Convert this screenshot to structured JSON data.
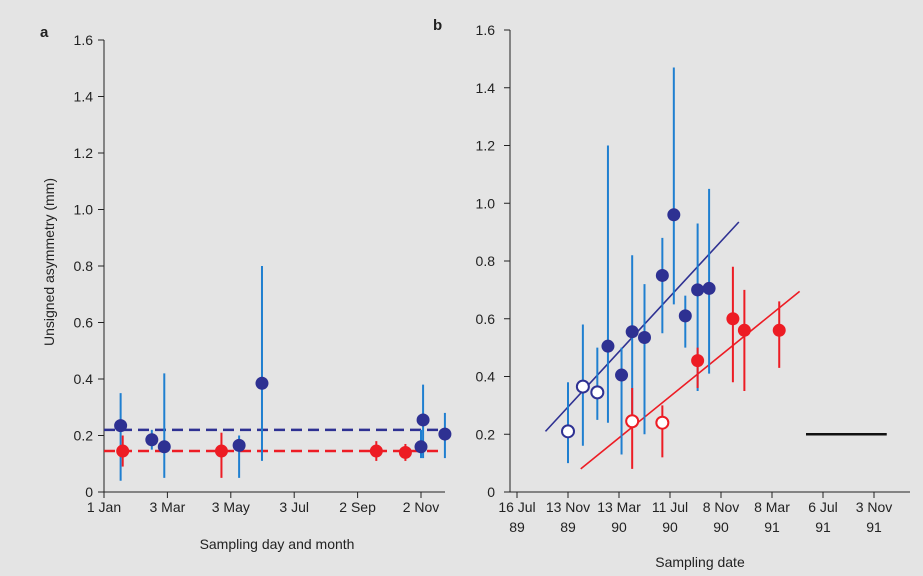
{
  "chart_data": [
    {
      "panel": "a",
      "type": "scatter",
      "xlabel": "Sampling day and month",
      "ylabel": "Unsigned asymmetry (mm)",
      "ylim": [
        0,
        1.6
      ],
      "yticks": [
        "0",
        "0.2",
        "0.4",
        "0.6",
        "0.8",
        "1.0",
        "1.2",
        "1.4",
        "1.6"
      ],
      "xlim": [
        -15,
        365
      ],
      "xticks": [
        {
          "day": 0,
          "label": "1 Jan"
        },
        {
          "day": 61,
          "label": "3 Mar"
        },
        {
          "day": 122,
          "label": "3 May"
        },
        {
          "day": 183,
          "label": "3 Jul"
        },
        {
          "day": 244,
          "label": "2 Sep"
        },
        {
          "day": 305,
          "label": "2 Nov"
        }
      ],
      "colors": {
        "blue": "#2e3192",
        "red": "#ed1c24",
        "errorbar": "#1f7fd0"
      },
      "series": [
        {
          "color": "blue",
          "points": [
            {
              "x": 16,
              "y": 0.235,
              "lo": 0.04,
              "hi": 0.35
            },
            {
              "x": 46,
              "y": 0.185,
              "lo": 0.15,
              "hi": 0.22
            },
            {
              "x": 58,
              "y": 0.16,
              "lo": 0.05,
              "hi": 0.42
            },
            {
              "x": 130,
              "y": 0.165,
              "lo": 0.05,
              "hi": 0.2
            },
            {
              "x": 152,
              "y": 0.385,
              "lo": 0.11,
              "hi": 0.8
            },
            {
              "x": 305,
              "y": 0.16,
              "lo": 0.12,
              "hi": 0.22
            },
            {
              "x": 307,
              "y": 0.255,
              "lo": 0.12,
              "hi": 0.38
            },
            {
              "x": 328,
              "y": 0.205,
              "lo": 0.12,
              "hi": 0.28
            }
          ],
          "reference_line": 0.22
        },
        {
          "color": "red",
          "points": [
            {
              "x": 18,
              "y": 0.145,
              "lo": 0.09,
              "hi": 0.2
            },
            {
              "x": 113,
              "y": 0.145,
              "lo": 0.05,
              "hi": 0.21
            },
            {
              "x": 262,
              "y": 0.145,
              "lo": 0.11,
              "hi": 0.18
            },
            {
              "x": 290,
              "y": 0.14,
              "lo": 0.11,
              "hi": 0.17
            }
          ],
          "reference_line": 0.145
        }
      ]
    },
    {
      "panel": "b",
      "type": "scatter",
      "xlabel": "Sampling date",
      "ylim": [
        0,
        1.6
      ],
      "yticks": [
        "0",
        "0.2",
        "0.4",
        "0.6",
        "0.8",
        "1.0",
        "1.2",
        "1.4",
        "1.6"
      ],
      "xlim": [
        0,
        840
      ],
      "xticks": [
        {
          "day": 0,
          "label": [
            "16 Jul",
            "89"
          ]
        },
        {
          "day": 120,
          "label": [
            "13 Nov",
            "89"
          ]
        },
        {
          "day": 240,
          "label": [
            "13 Mar",
            "90"
          ]
        },
        {
          "day": 360,
          "label": [
            "11 Jul",
            "90"
          ]
        },
        {
          "day": 480,
          "label": [
            "8 Nov",
            "90"
          ]
        },
        {
          "day": 600,
          "label": [
            "8 Mar",
            "91"
          ]
        },
        {
          "day": 720,
          "label": [
            "6 Jul",
            "91"
          ]
        },
        {
          "day": 840,
          "label": [
            "3 Nov",
            "91"
          ]
        }
      ],
      "colors": {
        "blue": "#2e3192",
        "red": "#ed1c24",
        "errorbar": "#1f7fd0",
        "scalebar": "#111111"
      },
      "series": [
        {
          "color": "blue",
          "trend": [
            [
              67,
              0.21
            ],
            [
              522,
              0.935
            ]
          ],
          "points": [
            {
              "x": 120,
              "y": 0.21,
              "lo": 0.1,
              "hi": 0.38,
              "open": true
            },
            {
              "x": 155,
              "y": 0.365,
              "lo": 0.16,
              "hi": 0.58,
              "open": true
            },
            {
              "x": 189,
              "y": 0.345,
              "lo": 0.25,
              "hi": 0.5,
              "open": true
            },
            {
              "x": 214,
              "y": 0.505,
              "lo": 0.24,
              "hi": 1.2
            },
            {
              "x": 246,
              "y": 0.405,
              "lo": 0.13,
              "hi": 0.5
            },
            {
              "x": 271,
              "y": 0.555,
              "lo": 0.23,
              "hi": 0.82
            },
            {
              "x": 300,
              "y": 0.535,
              "lo": 0.2,
              "hi": 0.72
            },
            {
              "x": 342,
              "y": 0.75,
              "lo": 0.55,
              "hi": 0.88
            },
            {
              "x": 369,
              "y": 0.96,
              "lo": 0.65,
              "hi": 1.47
            },
            {
              "x": 396,
              "y": 0.61,
              "lo": 0.5,
              "hi": 0.68
            },
            {
              "x": 425,
              "y": 0.7,
              "lo": 0.35,
              "hi": 0.93
            },
            {
              "x": 452,
              "y": 0.705,
              "lo": 0.41,
              "hi": 1.05
            }
          ]
        },
        {
          "color": "red",
          "trend": [
            [
              150,
              0.08
            ],
            [
              665,
              0.695
            ]
          ],
          "points": [
            {
              "x": 271,
              "y": 0.245,
              "lo": 0.08,
              "hi": 0.36,
              "open": true
            },
            {
              "x": 342,
              "y": 0.24,
              "lo": 0.12,
              "hi": 0.3,
              "open": true
            },
            {
              "x": 425,
              "y": 0.455,
              "lo": 0.36,
              "hi": 0.5
            },
            {
              "x": 508,
              "y": 0.6,
              "lo": 0.38,
              "hi": 0.78
            },
            {
              "x": 535,
              "y": 0.56,
              "lo": 0.35,
              "hi": 0.7
            },
            {
              "x": 617,
              "y": 0.56,
              "lo": 0.43,
              "hi": 0.66
            }
          ]
        }
      ],
      "scale_bar": {
        "x0": 680,
        "x1": 870,
        "y": 0.2
      }
    }
  ]
}
